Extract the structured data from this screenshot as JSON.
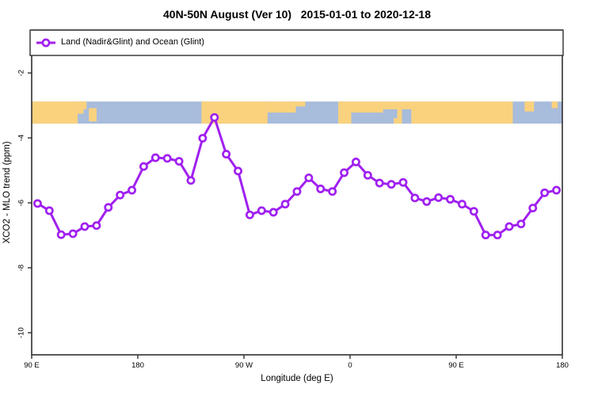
{
  "colors": {
    "series": "#A020F0",
    "marker_fill": "#ffffff",
    "land": "#FAD27E",
    "ocean": "#A8BCDB",
    "frame": "#2e2e2e",
    "text": "#000000",
    "background": "#ffffff"
  },
  "legend": {
    "label": "Land (Nadir&Glint) and Ocean (Glint)"
  },
  "chart_data": {
    "type": "line",
    "title": "40N-50N August (Ver 10)   2015-01-01 to 2020-12-18",
    "xlabel": "Longitude (deg E)",
    "ylabel": "XCO2 - MLO trend (ppm)",
    "legend_entries": [
      "Land (Nadir&Glint) and Ocean (Glint)"
    ],
    "legend_position": "top-left, full-width box under title",
    "grid": false,
    "xlim": [
      90,
      540
    ],
    "ylim": [
      -10.68,
      -0.68
    ],
    "x_axis_note": "axis wraps eastward: 90E → 180 → 90W → 0 → 90E → 180 (450 deg span)",
    "x_ticks": [
      {
        "pos": 90,
        "label": "90 E"
      },
      {
        "pos": 180,
        "label": "180"
      },
      {
        "pos": 270,
        "label": "90 W"
      },
      {
        "pos": 360,
        "label": "0"
      },
      {
        "pos": 450,
        "label": "90 E"
      },
      {
        "pos": 540,
        "label": "180"
      }
    ],
    "y_ticks": [
      -2,
      -4,
      -6,
      -8,
      -10
    ],
    "x": [
      95,
      105,
      115,
      125,
      135,
      145,
      155,
      165,
      175,
      185,
      195,
      205,
      215,
      225,
      235,
      245,
      255,
      265,
      275,
      285,
      295,
      305,
      315,
      325,
      335,
      345,
      355,
      365,
      375,
      385,
      395,
      405,
      415,
      425,
      435,
      445,
      455,
      465,
      475,
      485,
      495,
      505,
      515,
      525,
      535
    ],
    "y": [
      -6.02,
      -6.24,
      -6.98,
      -6.95,
      -6.73,
      -6.7,
      -6.14,
      -5.76,
      -5.61,
      -4.88,
      -4.61,
      -4.63,
      -4.72,
      -5.31,
      -4.01,
      -3.37,
      -4.5,
      -5.02,
      -6.37,
      -6.24,
      -6.29,
      -6.04,
      -5.65,
      -5.23,
      -5.57,
      -5.65,
      -5.07,
      -4.74,
      -5.15,
      -5.39,
      -5.43,
      -5.37,
      -5.85,
      -5.96,
      -5.84,
      -5.89,
      -6.04,
      -6.26,
      -6.99,
      -6.99,
      -6.73,
      -6.65,
      -6.16,
      -5.69,
      -5.61
    ],
    "map_strip": {
      "description": "world map band of 40N-50N latitudes drawn across plot",
      "y_top": -2.88,
      "y_bottom": -3.56,
      "land_segments": [
        {
          "lon0": 90,
          "lon1": 129,
          "f0": 0,
          "f1": 1
        },
        {
          "lon0": 129,
          "lon1": 134,
          "f0": 0,
          "f1": 0.55
        },
        {
          "lon0": 133,
          "lon1": 136.5,
          "f0": 0,
          "f1": 0.35
        },
        {
          "lon0": 138.5,
          "lon1": 145,
          "f0": 0.3,
          "f1": 0.9
        },
        {
          "lon0": 234,
          "lon1": 290,
          "f0": 0,
          "f1": 1
        },
        {
          "lon0": 290,
          "lon1": 314,
          "f0": 0,
          "f1": 0.5
        },
        {
          "lon0": 314,
          "lon1": 322,
          "f0": 0,
          "f1": 0.22
        },
        {
          "lon0": 350,
          "lon1": 498,
          "f0": 0,
          "f1": 1
        },
        {
          "lon0": 508,
          "lon1": 516,
          "f0": 0,
          "f1": 0.45
        },
        {
          "lon0": 531,
          "lon1": 536,
          "f0": 0,
          "f1": 0.3
        }
      ],
      "water_overlays": [
        {
          "lon0": 361,
          "lon1": 397,
          "f0": 0.5,
          "f1": 1
        },
        {
          "lon0": 388,
          "lon1": 400,
          "f0": 0.35,
          "f1": 0.75
        },
        {
          "lon0": 404,
          "lon1": 412,
          "f0": 0.35,
          "f1": 1
        }
      ]
    }
  }
}
